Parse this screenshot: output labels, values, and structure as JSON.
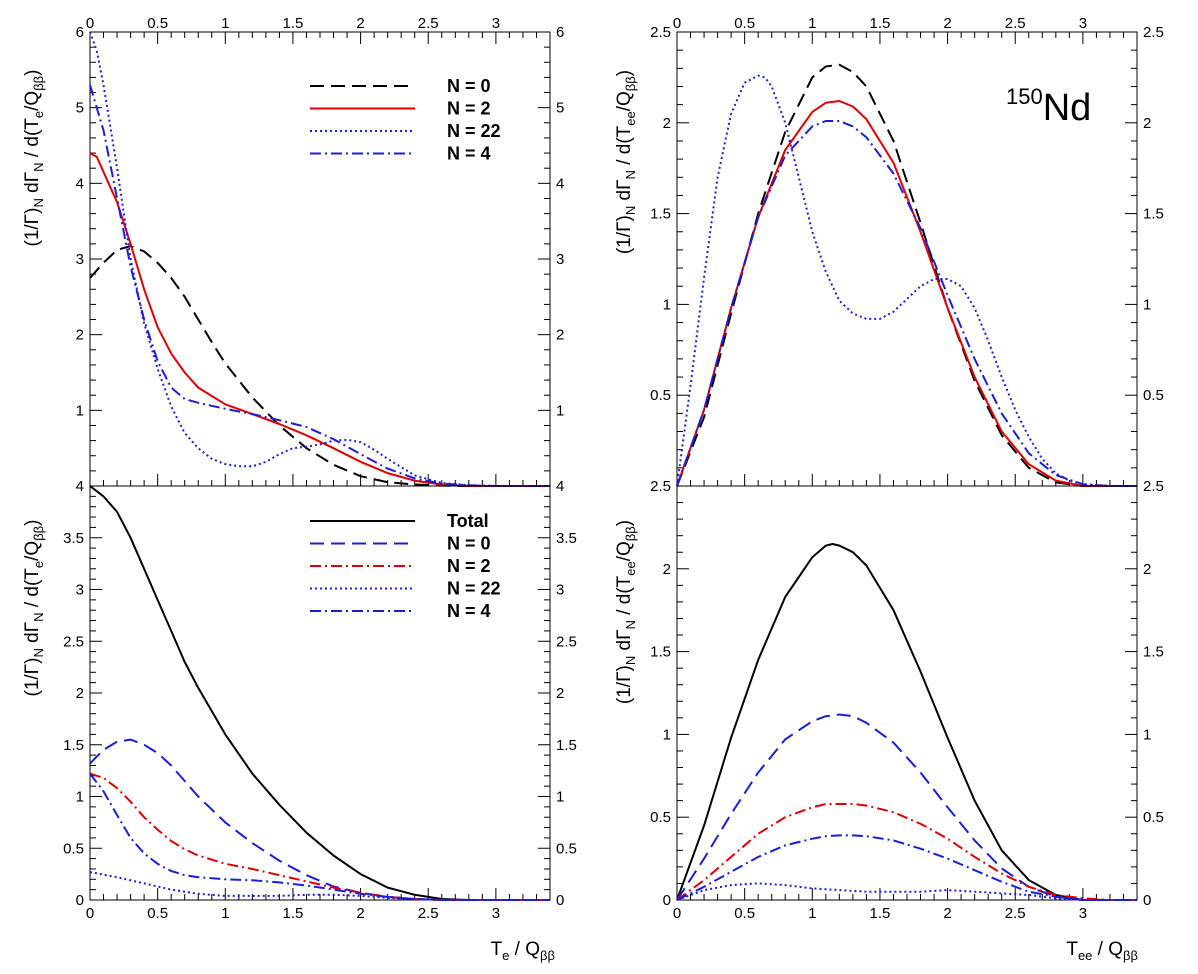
{
  "nucleus": {
    "mass": "150",
    "symbol": "Nd"
  },
  "axis_text": {
    "x_left": "T_e / Q_ββ",
    "x_right": "T_ee / Q_ββ",
    "y_left": "(1/Γ)_N dΓ_N / d(T_e/Q_ββ)",
    "y_right": "(1/Γ)_N dΓ_N / d(T_ee/Q_ββ)"
  },
  "colors": {
    "black": "#000000",
    "red": "#e00000",
    "blue": "#1c1cdc"
  },
  "chart_data": [
    {
      "type": "line",
      "id": "top-left",
      "xlim": [
        0,
        3.4
      ],
      "ylim": [
        0,
        6
      ],
      "x_ticks": [
        "0",
        "0.5",
        "1",
        "1.5",
        "2",
        "2.5",
        "3"
      ],
      "x_tick_values": [
        0,
        0.5,
        1,
        1.5,
        2,
        2.5,
        3
      ],
      "y_ticks": [
        "1",
        "2",
        "3",
        "4",
        "5",
        "6"
      ],
      "y_tick_values": [
        1,
        2,
        3,
        4,
        5,
        6
      ],
      "legend": [
        "N = 0",
        "N = 2",
        "N = 22",
        "N = 4"
      ],
      "series": [
        {
          "name": "N = 0",
          "color": "black",
          "style": "dash",
          "x": [
            0,
            0.1,
            0.2,
            0.3,
            0.4,
            0.5,
            0.6,
            0.7,
            0.8,
            0.9,
            1.0,
            1.2,
            1.4,
            1.6,
            1.8,
            2.0,
            2.2,
            2.4,
            2.6,
            2.8,
            3.0,
            3.4
          ],
          "y": [
            2.75,
            2.95,
            3.12,
            3.17,
            3.1,
            2.95,
            2.75,
            2.5,
            2.2,
            1.9,
            1.62,
            1.17,
            0.8,
            0.5,
            0.28,
            0.13,
            0.05,
            0.02,
            0.005,
            0,
            0,
            0
          ]
        },
        {
          "name": "N = 2",
          "color": "red",
          "style": "solid",
          "x": [
            0,
            0.05,
            0.1,
            0.2,
            0.3,
            0.4,
            0.5,
            0.6,
            0.7,
            0.8,
            1.0,
            1.2,
            1.4,
            1.6,
            1.8,
            2.0,
            2.2,
            2.4,
            2.6,
            2.8,
            3.0,
            3.4
          ],
          "y": [
            4.4,
            4.35,
            4.15,
            3.75,
            3.2,
            2.6,
            2.1,
            1.75,
            1.5,
            1.3,
            1.08,
            0.95,
            0.82,
            0.67,
            0.5,
            0.32,
            0.17,
            0.07,
            0.02,
            0,
            0,
            0
          ]
        },
        {
          "name": "N = 22",
          "color": "blue",
          "style": "dot",
          "x": [
            0,
            0.05,
            0.1,
            0.2,
            0.3,
            0.4,
            0.5,
            0.6,
            0.7,
            0.8,
            0.9,
            1.0,
            1.1,
            1.2,
            1.3,
            1.4,
            1.5,
            1.6,
            1.7,
            1.8,
            1.9,
            2.0,
            2.1,
            2.2,
            2.4,
            2.6,
            2.8,
            3.0,
            3.4
          ],
          "y": [
            6.0,
            5.75,
            5.3,
            4.2,
            3.0,
            2.15,
            1.55,
            1.05,
            0.7,
            0.5,
            0.36,
            0.29,
            0.26,
            0.26,
            0.32,
            0.42,
            0.5,
            0.52,
            0.55,
            0.6,
            0.61,
            0.58,
            0.48,
            0.36,
            0.14,
            0.04,
            0.01,
            0,
            0
          ]
        },
        {
          "name": "N = 4",
          "color": "blue",
          "style": "dashdot",
          "x": [
            0,
            0.1,
            0.2,
            0.3,
            0.4,
            0.5,
            0.6,
            0.7,
            0.8,
            1.0,
            1.2,
            1.4,
            1.6,
            1.8,
            2.0,
            2.2,
            2.4,
            2.6,
            2.8,
            3.0,
            3.4
          ],
          "y": [
            5.3,
            4.7,
            3.8,
            2.9,
            2.2,
            1.65,
            1.3,
            1.15,
            1.1,
            1.02,
            0.95,
            0.87,
            0.78,
            0.62,
            0.42,
            0.23,
            0.1,
            0.03,
            0.01,
            0,
            0
          ]
        }
      ]
    },
    {
      "type": "line",
      "id": "top-right",
      "xlim": [
        0,
        3.4
      ],
      "ylim": [
        0,
        2.5
      ],
      "x_ticks": [
        "0",
        "0.5",
        "1",
        "1.5",
        "2",
        "2.5",
        "3"
      ],
      "x_tick_values": [
        0,
        0.5,
        1,
        1.5,
        2,
        2.5,
        3
      ],
      "y_ticks": [
        "0.5",
        "1",
        "1.5",
        "2",
        "2.5"
      ],
      "y_tick_values": [
        0.5,
        1,
        1.5,
        2,
        2.5
      ],
      "series": [
        {
          "name": "N = 0",
          "color": "black",
          "style": "dash",
          "x": [
            0,
            0.2,
            0.4,
            0.6,
            0.8,
            1.0,
            1.1,
            1.2,
            1.3,
            1.4,
            1.6,
            1.8,
            2.0,
            2.2,
            2.4,
            2.6,
            2.8,
            3.0,
            3.2,
            3.4
          ],
          "y": [
            0,
            0.38,
            0.95,
            1.5,
            1.95,
            2.25,
            2.31,
            2.32,
            2.28,
            2.2,
            1.9,
            1.45,
            0.98,
            0.58,
            0.28,
            0.1,
            0.02,
            0,
            0,
            0
          ]
        },
        {
          "name": "N = 2",
          "color": "red",
          "style": "solid",
          "x": [
            0,
            0.2,
            0.4,
            0.6,
            0.8,
            1.0,
            1.1,
            1.2,
            1.3,
            1.4,
            1.6,
            1.8,
            2.0,
            2.2,
            2.4,
            2.6,
            2.8,
            3.0,
            3.2,
            3.4
          ],
          "y": [
            0,
            0.42,
            0.98,
            1.48,
            1.85,
            2.06,
            2.11,
            2.12,
            2.09,
            2.02,
            1.78,
            1.4,
            0.98,
            0.6,
            0.3,
            0.12,
            0.03,
            0,
            0,
            0
          ]
        },
        {
          "name": "N = 22",
          "color": "blue",
          "style": "dot",
          "x": [
            0,
            0.1,
            0.2,
            0.3,
            0.4,
            0.5,
            0.6,
            0.65,
            0.7,
            0.8,
            0.9,
            1.0,
            1.1,
            1.2,
            1.3,
            1.4,
            1.5,
            1.6,
            1.7,
            1.8,
            1.9,
            2.0,
            2.1,
            2.2,
            2.3,
            2.4,
            2.5,
            2.6,
            2.7,
            2.8,
            2.9,
            3.0,
            3.2,
            3.4
          ],
          "y": [
            0,
            0.55,
            1.15,
            1.7,
            2.05,
            2.22,
            2.26,
            2.25,
            2.2,
            2.0,
            1.7,
            1.4,
            1.18,
            1.02,
            0.95,
            0.92,
            0.92,
            0.96,
            1.03,
            1.1,
            1.14,
            1.14,
            1.1,
            0.98,
            0.8,
            0.6,
            0.42,
            0.27,
            0.15,
            0.07,
            0.03,
            0.01,
            0,
            0
          ]
        },
        {
          "name": "N = 4",
          "color": "blue",
          "style": "dashdot",
          "x": [
            0,
            0.2,
            0.4,
            0.6,
            0.8,
            1.0,
            1.1,
            1.2,
            1.3,
            1.4,
            1.6,
            1.8,
            2.0,
            2.2,
            2.4,
            2.6,
            2.8,
            3.0,
            3.2,
            3.4
          ],
          "y": [
            0,
            0.42,
            0.98,
            1.48,
            1.82,
            1.98,
            2.01,
            2.01,
            1.98,
            1.92,
            1.72,
            1.42,
            1.05,
            0.7,
            0.4,
            0.18,
            0.06,
            0.01,
            0,
            0
          ]
        }
      ]
    },
    {
      "type": "line",
      "id": "bottom-left",
      "xlim": [
        0,
        3.4
      ],
      "ylim": [
        0,
        4
      ],
      "x_ticks": [
        "0",
        "0.5",
        "1",
        "1.5",
        "2",
        "2.5",
        "3"
      ],
      "x_tick_values": [
        0,
        0.5,
        1,
        1.5,
        2,
        2.5,
        3
      ],
      "y_ticks": [
        "0",
        "0.5",
        "1",
        "1.5",
        "2",
        "2.5",
        "3",
        "3.5",
        "4"
      ],
      "y_tick_values": [
        0,
        0.5,
        1,
        1.5,
        2,
        2.5,
        3,
        3.5,
        4
      ],
      "legend": [
        "Total",
        "N = 0",
        "N = 2",
        "N = 22",
        "N = 4"
      ],
      "series": [
        {
          "name": "Total",
          "color": "black",
          "style": "solid",
          "x": [
            0,
            0.1,
            0.2,
            0.3,
            0.4,
            0.5,
            0.6,
            0.7,
            0.8,
            1.0,
            1.2,
            1.4,
            1.6,
            1.8,
            2.0,
            2.2,
            2.4,
            2.6,
            2.8,
            3.0,
            3.4
          ],
          "y": [
            4.0,
            3.9,
            3.75,
            3.5,
            3.2,
            2.9,
            2.6,
            2.3,
            2.05,
            1.6,
            1.22,
            0.92,
            0.65,
            0.43,
            0.25,
            0.12,
            0.05,
            0.01,
            0,
            0,
            0
          ]
        },
        {
          "name": "N = 0",
          "color": "blue",
          "style": "dash",
          "x": [
            0,
            0.1,
            0.2,
            0.3,
            0.4,
            0.5,
            0.6,
            0.7,
            0.8,
            1.0,
            1.2,
            1.4,
            1.6,
            1.8,
            2.0,
            2.2,
            2.4,
            2.6,
            3.0,
            3.4
          ],
          "y": [
            1.32,
            1.45,
            1.53,
            1.55,
            1.5,
            1.42,
            1.3,
            1.15,
            1.0,
            0.75,
            0.55,
            0.38,
            0.24,
            0.13,
            0.07,
            0.03,
            0.01,
            0,
            0,
            0
          ]
        },
        {
          "name": "N = 2",
          "color": "red",
          "style": "dashdot",
          "x": [
            0,
            0.1,
            0.2,
            0.3,
            0.4,
            0.5,
            0.6,
            0.7,
            0.8,
            1.0,
            1.2,
            1.4,
            1.6,
            1.8,
            2.0,
            2.2,
            2.4,
            2.6,
            3.0,
            3.4
          ],
          "y": [
            1.22,
            1.18,
            1.08,
            0.95,
            0.8,
            0.68,
            0.57,
            0.49,
            0.43,
            0.35,
            0.3,
            0.24,
            0.18,
            0.12,
            0.07,
            0.03,
            0.01,
            0,
            0,
            0
          ]
        },
        {
          "name": "N = 22",
          "color": "blue",
          "style": "dot",
          "x": [
            0,
            0.2,
            0.4,
            0.6,
            0.8,
            1.0,
            1.2,
            1.4,
            1.6,
            1.8,
            2.0,
            2.2,
            2.4,
            2.6,
            3.0,
            3.4
          ],
          "y": [
            0.27,
            0.22,
            0.16,
            0.1,
            0.06,
            0.04,
            0.04,
            0.04,
            0.05,
            0.05,
            0.04,
            0.02,
            0.01,
            0,
            0,
            0
          ]
        },
        {
          "name": "N = 4",
          "color": "blue",
          "style": "dashdot",
          "x": [
            0,
            0.1,
            0.2,
            0.3,
            0.4,
            0.5,
            0.6,
            0.7,
            0.8,
            1.0,
            1.2,
            1.4,
            1.6,
            1.8,
            2.0,
            2.2,
            2.4,
            2.6,
            3.0,
            3.4
          ],
          "y": [
            1.22,
            1.05,
            0.82,
            0.6,
            0.45,
            0.35,
            0.28,
            0.24,
            0.22,
            0.2,
            0.19,
            0.17,
            0.14,
            0.1,
            0.06,
            0.03,
            0.01,
            0,
            0,
            0
          ]
        }
      ]
    },
    {
      "type": "line",
      "id": "bottom-right",
      "xlim": [
        0,
        3.4
      ],
      "ylim": [
        0,
        2.5
      ],
      "x_ticks": [
        "0",
        "0.5",
        "1",
        "1.5",
        "2",
        "2.5",
        "3"
      ],
      "x_tick_values": [
        0,
        0.5,
        1,
        1.5,
        2,
        2.5,
        3
      ],
      "y_ticks": [
        "0",
        "0.5",
        "1",
        "1.5",
        "2",
        "2.5"
      ],
      "y_tick_values": [
        0,
        0.5,
        1,
        1.5,
        2,
        2.5
      ],
      "series": [
        {
          "name": "Total",
          "color": "black",
          "style": "solid",
          "x": [
            0,
            0.2,
            0.4,
            0.6,
            0.8,
            1.0,
            1.1,
            1.15,
            1.2,
            1.3,
            1.4,
            1.6,
            1.8,
            2.0,
            2.2,
            2.4,
            2.6,
            2.8,
            3.0,
            3.2,
            3.4
          ],
          "y": [
            0,
            0.45,
            0.98,
            1.45,
            1.83,
            2.07,
            2.14,
            2.15,
            2.14,
            2.1,
            2.02,
            1.75,
            1.38,
            0.98,
            0.6,
            0.3,
            0.12,
            0.03,
            0,
            0,
            0
          ]
        },
        {
          "name": "N = 0",
          "color": "blue",
          "style": "dash",
          "x": [
            0,
            0.2,
            0.4,
            0.6,
            0.8,
            1.0,
            1.1,
            1.2,
            1.3,
            1.4,
            1.6,
            1.8,
            2.0,
            2.2,
            2.4,
            2.6,
            2.8,
            3.0,
            3.2,
            3.4
          ],
          "y": [
            0,
            0.25,
            0.52,
            0.77,
            0.97,
            1.08,
            1.11,
            1.12,
            1.11,
            1.07,
            0.95,
            0.77,
            0.56,
            0.36,
            0.19,
            0.08,
            0.02,
            0,
            0,
            0
          ]
        },
        {
          "name": "N = 2",
          "color": "red",
          "style": "dashdot",
          "x": [
            0,
            0.2,
            0.4,
            0.6,
            0.8,
            1.0,
            1.1,
            1.2,
            1.3,
            1.4,
            1.6,
            1.8,
            2.0,
            2.2,
            2.4,
            2.6,
            2.8,
            3.0,
            3.2,
            3.4
          ],
          "y": [
            0,
            0.12,
            0.26,
            0.4,
            0.5,
            0.56,
            0.58,
            0.58,
            0.58,
            0.57,
            0.53,
            0.46,
            0.37,
            0.26,
            0.16,
            0.08,
            0.03,
            0.01,
            0,
            0
          ]
        },
        {
          "name": "N = 22",
          "color": "blue",
          "style": "dot",
          "x": [
            0,
            0.2,
            0.4,
            0.6,
            0.8,
            1.0,
            1.2,
            1.4,
            1.6,
            1.8,
            2.0,
            2.2,
            2.4,
            2.6,
            2.8,
            3.0,
            3.4
          ],
          "y": [
            0,
            0.06,
            0.09,
            0.1,
            0.09,
            0.07,
            0.06,
            0.05,
            0.05,
            0.05,
            0.06,
            0.05,
            0.04,
            0.03,
            0.01,
            0,
            0
          ]
        },
        {
          "name": "N = 4",
          "color": "blue",
          "style": "dashdot",
          "x": [
            0,
            0.2,
            0.4,
            0.6,
            0.8,
            1.0,
            1.1,
            1.2,
            1.3,
            1.4,
            1.6,
            1.8,
            2.0,
            2.2,
            2.4,
            2.6,
            2.8,
            3.0,
            3.2,
            3.4
          ],
          "y": [
            0,
            0.08,
            0.17,
            0.26,
            0.33,
            0.37,
            0.385,
            0.39,
            0.39,
            0.385,
            0.36,
            0.31,
            0.25,
            0.18,
            0.11,
            0.05,
            0.02,
            0,
            0,
            0
          ]
        }
      ]
    }
  ]
}
